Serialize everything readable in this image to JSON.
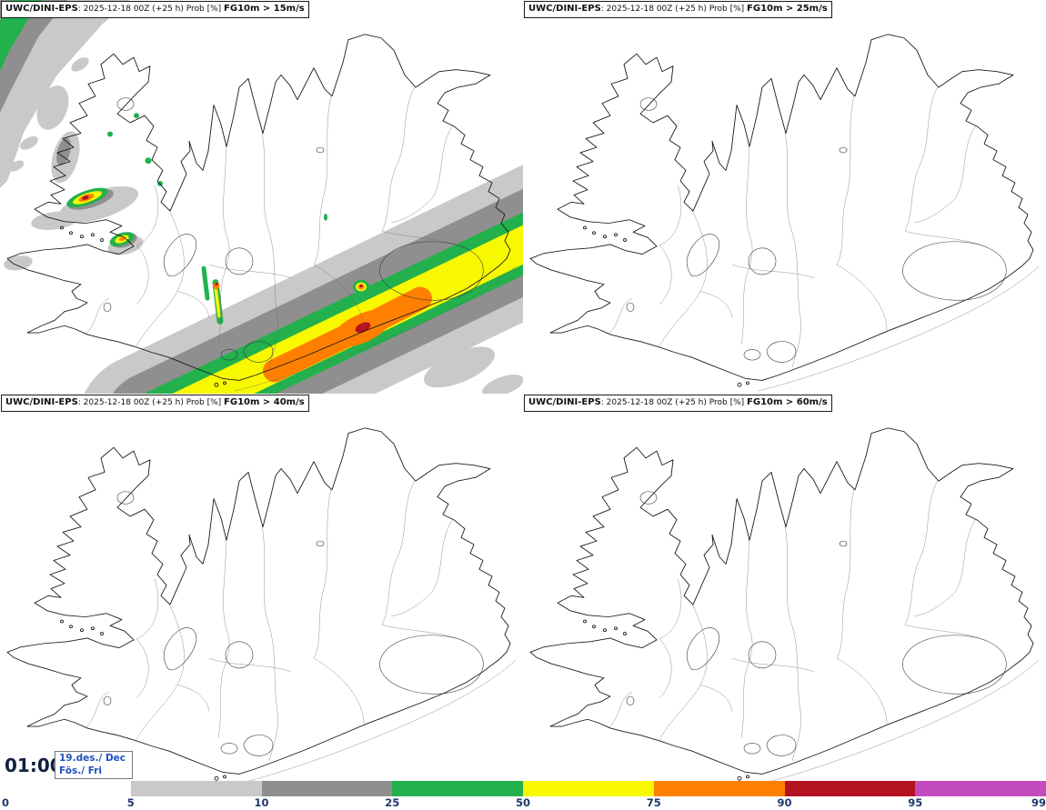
{
  "panels": [
    {
      "model": "UWC/DINI-EPS",
      "run_info": ": 2025-12-18 00Z (+25 h) Prob [%] ",
      "param": "FG10m > 15m/s"
    },
    {
      "model": "UWC/DINI-EPS",
      "run_info": ": 2025-12-18 00Z (+25 h) Prob [%] ",
      "param": "FG10m > 25m/s"
    },
    {
      "model": "UWC/DINI-EPS",
      "run_info": ": 2025-12-18 00Z (+25 h) Prob [%] ",
      "param": "FG10m > 40m/s"
    },
    {
      "model": "UWC/DINI-EPS",
      "run_info": ": 2025-12-18 00Z (+25 h) Prob [%] ",
      "param": "FG10m > 60m/s"
    }
  ],
  "footer": {
    "time": "01:00",
    "date_line1": "19.des./ Dec",
    "date_line2": "Fös./ Fri"
  },
  "legend": {
    "tick_labels": [
      "0",
      "5",
      "10",
      "25",
      "50",
      "75",
      "90",
      "95",
      "99"
    ],
    "segments": [
      {
        "range": "5-10",
        "color": "#c9c9c9"
      },
      {
        "range": "10-25",
        "color": "#8f8f8f"
      },
      {
        "range": "25-50",
        "color": "#22b14c"
      },
      {
        "range": "50-75",
        "color": "#f8f800"
      },
      {
        "range": "75-90",
        "color": "#ff8000"
      },
      {
        "range": "90-95",
        "color": "#b5121f"
      },
      {
        "range": "95-99",
        "color": "#c44bbe"
      }
    ],
    "label_color": "#1e3a6e"
  }
}
